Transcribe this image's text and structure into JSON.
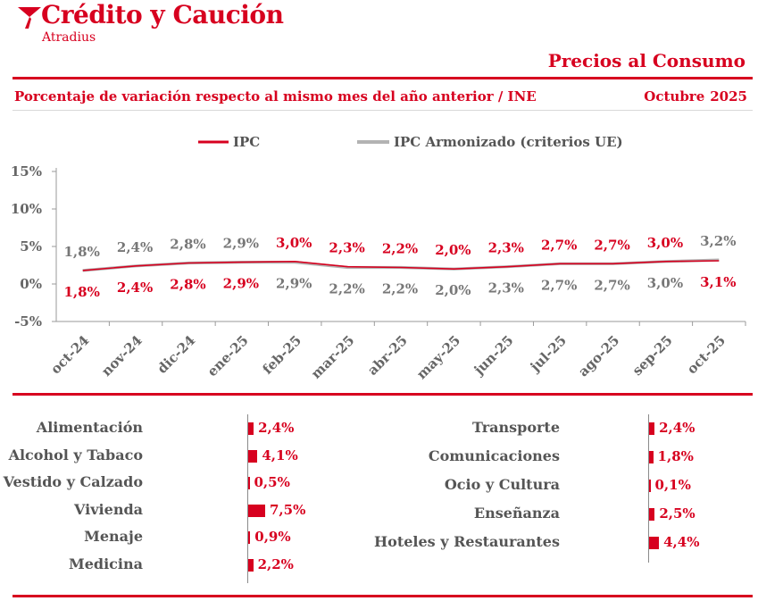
{
  "header": {
    "brand_name": "Crédito y Caución",
    "brand_sub": "Atradius",
    "report_title": "Precios al Consumo",
    "subtitle": "Porcentaje de variación respecto al mismo mes del año anterior / INE",
    "period_month": "Octubre",
    "period_year": "2025"
  },
  "colors": {
    "accent": "#d7001f",
    "secondary_series": "#b3b3b3",
    "text_gray": "#555555"
  },
  "chart_data": {
    "type": "line",
    "categories": [
      "oct-24",
      "nov-24",
      "dic-24",
      "ene-25",
      "feb-25",
      "mar-25",
      "abr-25",
      "may-25",
      "jun-25",
      "jul-25",
      "ago-25",
      "sep-25",
      "oct-25"
    ],
    "series": [
      {
        "name": "IPC",
        "values": [
          1.8,
          2.4,
          2.8,
          2.9,
          3.0,
          2.3,
          2.2,
          2.0,
          2.3,
          2.7,
          2.7,
          3.0,
          3.1
        ],
        "labels": [
          "1,8%",
          "2,4%",
          "2,8%",
          "2,9%",
          "3,0%",
          "2,3%",
          "2,2%",
          "2,0%",
          "2,3%",
          "2,7%",
          "2,7%",
          "3,0%",
          "3,1%"
        ]
      },
      {
        "name": "IPC Armonizado (criterios UE)",
        "values": [
          1.8,
          2.4,
          2.8,
          2.9,
          2.9,
          2.2,
          2.2,
          2.0,
          2.3,
          2.7,
          2.7,
          3.0,
          3.2
        ],
        "labels": [
          "1,8%",
          "2,4%",
          "2,8%",
          "2,9%",
          "2,9%",
          "2,2%",
          "2,2%",
          "2,0%",
          "2,3%",
          "2,7%",
          "2,7%",
          "3,0%",
          "3,2%"
        ]
      }
    ],
    "label_positions": {
      "IPC": [
        "below",
        "below",
        "below",
        "below",
        "above",
        "above",
        "above",
        "above",
        "above",
        "above",
        "above",
        "above",
        "below"
      ],
      "IPC Armonizado (criterios UE)": [
        "above",
        "above",
        "above",
        "above",
        "below",
        "below",
        "below",
        "below",
        "below",
        "below",
        "below",
        "below",
        "above"
      ]
    },
    "yticks": [
      "15%",
      "10%",
      "5%",
      "0%",
      "-5%"
    ],
    "ylim": [
      -5,
      15
    ],
    "xlabel": "",
    "ylabel": "",
    "grid": false,
    "legend": "top"
  },
  "categories_left": [
    {
      "name": "Alimentación",
      "value": 2.4,
      "label": "2,4%"
    },
    {
      "name": "Alcohol y Tabaco",
      "value": 4.1,
      "label": "4,1%"
    },
    {
      "name": "Vestido y Calzado",
      "value": 0.5,
      "label": "0,5%"
    },
    {
      "name": "Vivienda",
      "value": 7.5,
      "label": "7,5%"
    },
    {
      "name": "Menaje",
      "value": 0.9,
      "label": "0,9%"
    },
    {
      "name": "Medicina",
      "value": 2.2,
      "label": "2,2%"
    }
  ],
  "categories_right": [
    {
      "name": "Transporte",
      "value": 2.4,
      "label": "2,4%"
    },
    {
      "name": "Comunicaciones",
      "value": 1.8,
      "label": "1,8%"
    },
    {
      "name": "Ocio y Cultura",
      "value": 0.1,
      "label": "0,1%"
    },
    {
      "name": "Enseñanza",
      "value": 2.5,
      "label": "2,5%"
    },
    {
      "name": "Hoteles y Restaurantes",
      "value": 4.4,
      "label": "4,4%"
    }
  ]
}
